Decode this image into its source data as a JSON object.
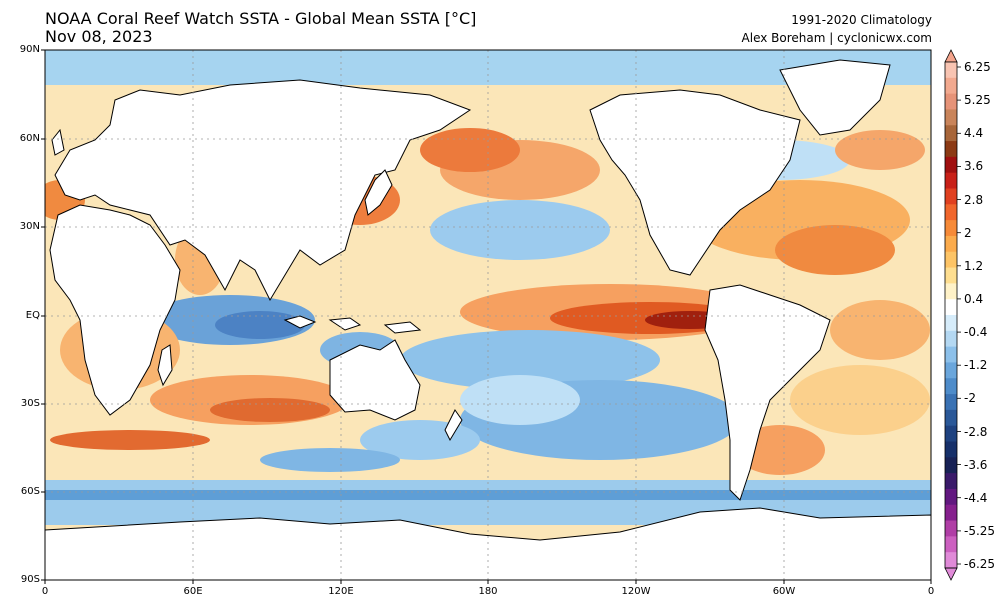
{
  "header": {
    "title": "NOAA Coral Reef Watch SSTA - Global Mean SSTA [°C]",
    "date": "Nov 08, 2023",
    "climatology": "1991-2020 Climatology",
    "credit": "Alex Boreham | cyclonicwx.com"
  },
  "map": {
    "lat_labels": [
      "90N",
      "60N",
      "30N",
      "EQ",
      "30S",
      "60S",
      "90S"
    ],
    "lon_labels": [
      "0",
      "60E",
      "120E",
      "180",
      "120W",
      "60W",
      "0"
    ]
  },
  "colorbar": {
    "labels": [
      "6.25",
      "5.25",
      "4.4",
      "3.6",
      "2.8",
      "2",
      "1.2",
      "0.4",
      "-0.4",
      "-1.2",
      "-2",
      "-2.8",
      "-3.6",
      "-4.4",
      "-5.25",
      "-6.25"
    ],
    "colors_top_to_bottom": [
      "#f8c4b2",
      "#f2a98f",
      "#e69378",
      "#c9845a",
      "#a8663a",
      "#8c3a14",
      "#a01010",
      "#c82018",
      "#e04020",
      "#f0662c",
      "#f68a38",
      "#fbab4c",
      "#fdc466",
      "#fede90",
      "#fff2c8",
      "#ffffff",
      "#d6ecfa",
      "#b4d8f2",
      "#8cc0ea",
      "#6aa6dc",
      "#4e8cca",
      "#3a72b4",
      "#2a5898",
      "#1e4280",
      "#16306a",
      "#182256",
      "#3a1a6a",
      "#621880",
      "#86208e",
      "#b03ea6",
      "#cc60c0",
      "#e08ad8"
    ],
    "arrow_top": "#f4a48c",
    "arrow_bottom": "#e08ad8"
  },
  "colors": {
    "land": "#ffffff",
    "coastline": "#000000",
    "grid": "#9a9a9a",
    "ocean_ice": "#9fd0ee"
  }
}
